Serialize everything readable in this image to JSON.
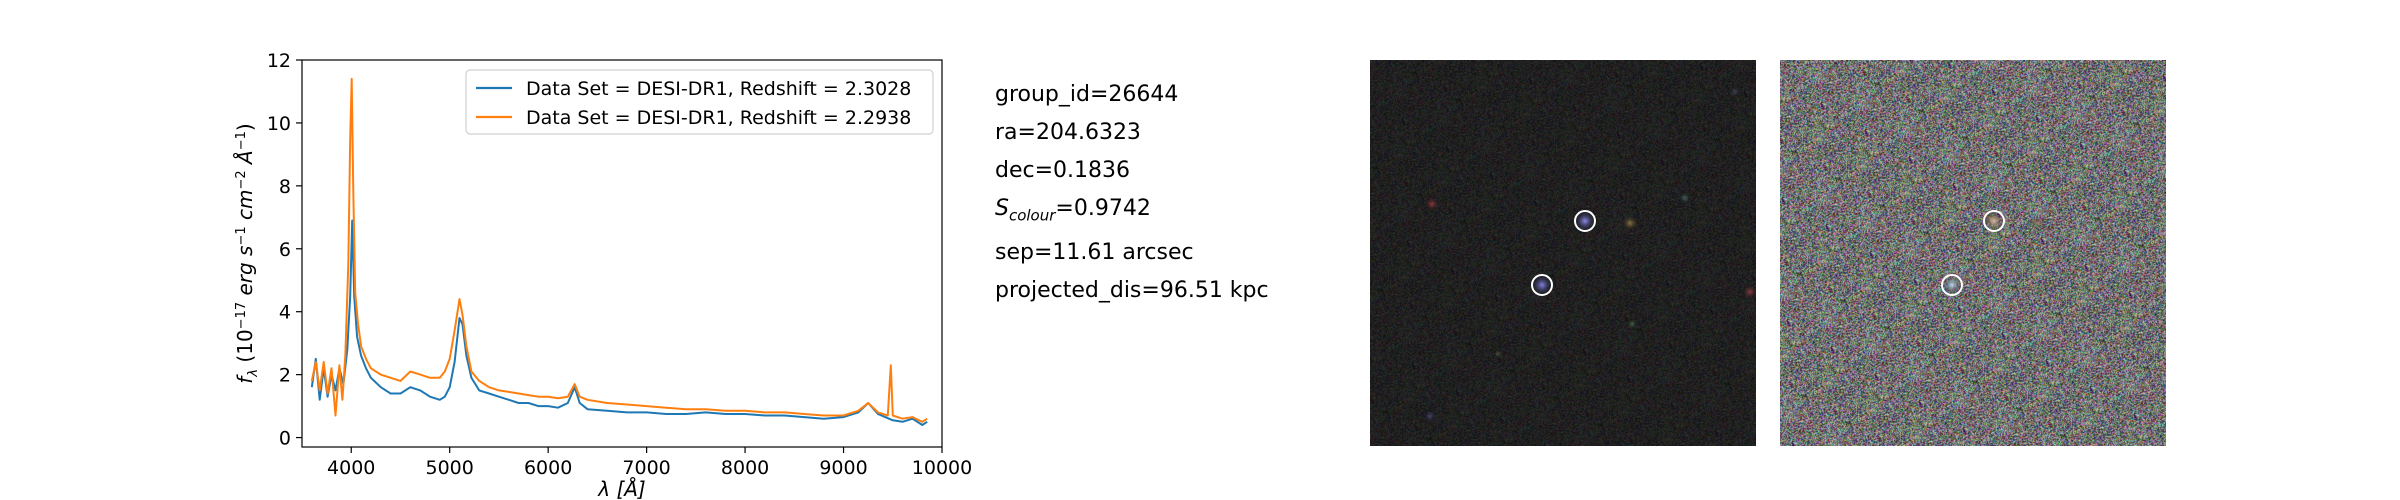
{
  "chart_data": {
    "type": "line",
    "xlabel": "λ [Å]",
    "ylabel": "f_λ (10^-17 erg s^-1 cm^-2 Å^-1)",
    "xlim": [
      3500,
      10000
    ],
    "ylim": [
      -0.3,
      12
    ],
    "xticks": [
      4000,
      5000,
      6000,
      7000,
      8000,
      9000,
      10000
    ],
    "yticks": [
      0,
      2,
      4,
      6,
      8,
      10,
      12
    ],
    "grid": false,
    "legend_position": "top-right",
    "series": [
      {
        "name": "Data Set = DESI-DR1, Redshift = 2.3028",
        "color": "#1f77b4",
        "points": [
          [
            3600,
            1.6
          ],
          [
            3640,
            2.5
          ],
          [
            3680,
            1.2
          ],
          [
            3720,
            2.2
          ],
          [
            3760,
            1.3
          ],
          [
            3800,
            2.0
          ],
          [
            3840,
            1.5
          ],
          [
            3880,
            2.2
          ],
          [
            3920,
            1.7
          ],
          [
            3960,
            2.8
          ],
          [
            3990,
            4.5
          ],
          [
            4010,
            6.9
          ],
          [
            4030,
            4.5
          ],
          [
            4060,
            3.2
          ],
          [
            4100,
            2.6
          ],
          [
            4150,
            2.2
          ],
          [
            4200,
            1.9
          ],
          [
            4300,
            1.6
          ],
          [
            4400,
            1.4
          ],
          [
            4500,
            1.4
          ],
          [
            4600,
            1.6
          ],
          [
            4700,
            1.5
          ],
          [
            4800,
            1.3
          ],
          [
            4900,
            1.2
          ],
          [
            4950,
            1.3
          ],
          [
            5000,
            1.6
          ],
          [
            5050,
            2.4
          ],
          [
            5100,
            3.8
          ],
          [
            5130,
            3.6
          ],
          [
            5170,
            2.6
          ],
          [
            5220,
            1.9
          ],
          [
            5300,
            1.5
          ],
          [
            5400,
            1.4
          ],
          [
            5500,
            1.3
          ],
          [
            5600,
            1.2
          ],
          [
            5700,
            1.1
          ],
          [
            5800,
            1.1
          ],
          [
            5900,
            1.0
          ],
          [
            6000,
            1.0
          ],
          [
            6100,
            0.95
          ],
          [
            6200,
            1.1
          ],
          [
            6270,
            1.6
          ],
          [
            6320,
            1.1
          ],
          [
            6400,
            0.9
          ],
          [
            6600,
            0.85
          ],
          [
            6800,
            0.8
          ],
          [
            7000,
            0.8
          ],
          [
            7200,
            0.75
          ],
          [
            7400,
            0.75
          ],
          [
            7600,
            0.8
          ],
          [
            7800,
            0.75
          ],
          [
            8000,
            0.75
          ],
          [
            8200,
            0.7
          ],
          [
            8400,
            0.7
          ],
          [
            8600,
            0.65
          ],
          [
            8800,
            0.6
          ],
          [
            9000,
            0.65
          ],
          [
            9150,
            0.8
          ],
          [
            9250,
            1.1
          ],
          [
            9350,
            0.75
          ],
          [
            9500,
            0.55
          ],
          [
            9600,
            0.5
          ],
          [
            9700,
            0.6
          ],
          [
            9800,
            0.4
          ],
          [
            9850,
            0.5
          ]
        ]
      },
      {
        "name": "Data Set = DESI-DR1, Redshift = 2.2938",
        "color": "#ff7f0e",
        "points": [
          [
            3600,
            1.8
          ],
          [
            3640,
            2.4
          ],
          [
            3680,
            1.5
          ],
          [
            3720,
            2.4
          ],
          [
            3760,
            1.4
          ],
          [
            3800,
            2.2
          ],
          [
            3840,
            0.7
          ],
          [
            3880,
            2.3
          ],
          [
            3910,
            1.2
          ],
          [
            3940,
            2.6
          ],
          [
            3970,
            5.5
          ],
          [
            3990,
            9.5
          ],
          [
            4005,
            11.4
          ],
          [
            4020,
            8.0
          ],
          [
            4040,
            4.6
          ],
          [
            4070,
            3.6
          ],
          [
            4100,
            2.9
          ],
          [
            4150,
            2.5
          ],
          [
            4200,
            2.2
          ],
          [
            4300,
            2.0
          ],
          [
            4400,
            1.9
          ],
          [
            4500,
            1.8
          ],
          [
            4600,
            2.1
          ],
          [
            4700,
            2.0
          ],
          [
            4800,
            1.9
          ],
          [
            4900,
            1.9
          ],
          [
            4950,
            2.1
          ],
          [
            5000,
            2.5
          ],
          [
            5050,
            3.4
          ],
          [
            5100,
            4.4
          ],
          [
            5130,
            3.9
          ],
          [
            5170,
            2.9
          ],
          [
            5220,
            2.1
          ],
          [
            5300,
            1.8
          ],
          [
            5400,
            1.6
          ],
          [
            5500,
            1.5
          ],
          [
            5600,
            1.45
          ],
          [
            5700,
            1.4
          ],
          [
            5800,
            1.35
          ],
          [
            5900,
            1.3
          ],
          [
            6000,
            1.3
          ],
          [
            6100,
            1.25
          ],
          [
            6200,
            1.3
          ],
          [
            6270,
            1.7
          ],
          [
            6320,
            1.3
          ],
          [
            6400,
            1.2
          ],
          [
            6600,
            1.1
          ],
          [
            6800,
            1.05
          ],
          [
            7000,
            1.0
          ],
          [
            7200,
            0.95
          ],
          [
            7400,
            0.9
          ],
          [
            7600,
            0.9
          ],
          [
            7800,
            0.85
          ],
          [
            8000,
            0.85
          ],
          [
            8200,
            0.8
          ],
          [
            8400,
            0.8
          ],
          [
            8600,
            0.75
          ],
          [
            8800,
            0.7
          ],
          [
            9000,
            0.7
          ],
          [
            9150,
            0.85
          ],
          [
            9250,
            1.1
          ],
          [
            9350,
            0.8
          ],
          [
            9450,
            0.7
          ],
          [
            9480,
            2.3
          ],
          [
            9500,
            0.7
          ],
          [
            9600,
            0.6
          ],
          [
            9700,
            0.65
          ],
          [
            9800,
            0.5
          ],
          [
            9850,
            0.6
          ]
        ]
      }
    ]
  },
  "info": {
    "group_id": "group_id=26644",
    "ra": "ra=204.6323",
    "dec": "dec=0.1836",
    "s_colour_symbol": "S",
    "s_colour_sub": "colour",
    "s_colour_value": "=0.9742",
    "sep": "sep=11.61 arcsec",
    "projected_dis": "projected_dis=96.51 kpc"
  },
  "thumbnails": {
    "left": {
      "background": "#1c1c1c",
      "marker_color": "#ffffff"
    },
    "right": {
      "background": "#7a7a7a",
      "marker_color": "#ffffff"
    }
  }
}
